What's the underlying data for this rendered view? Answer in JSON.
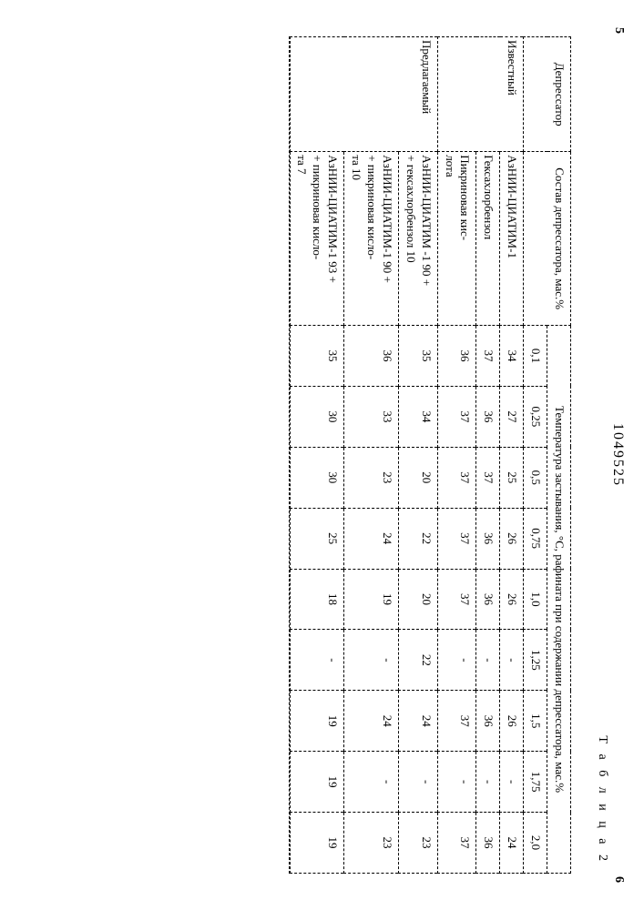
{
  "doc_number": "1049525",
  "margin_left": "5",
  "margin_right": "6",
  "table_caption": "Т а б л и ц а   2",
  "headers": {
    "col1": "Депрессатор",
    "col2": "Состав депрессатора,\nмас.%",
    "span_title": "Температура застывания, °С, рафината при содержании депрессатора, мас.%",
    "concs": [
      "0,1",
      "0,25",
      "0,5",
      "0,75",
      "1,0",
      "1,25",
      "1,5",
      "1,75",
      "2,0"
    ]
  },
  "groups": [
    {
      "name": "Известный",
      "rows": [
        {
          "comp": "АзНИИ-ЦИАТИМ-1",
          "vals": [
            "34",
            "27",
            "25",
            "26",
            "26",
            "-",
            "26",
            "-",
            "24"
          ]
        },
        {
          "comp": "Гексахлорбензол",
          "vals": [
            "37",
            "36",
            "37",
            "36",
            "36",
            "-",
            "36",
            "-",
            "36"
          ]
        },
        {
          "comp": "Пикриновая кис-\nлота",
          "vals": [
            "36",
            "37",
            "37",
            "37",
            "37",
            "-",
            "37",
            "-",
            "37"
          ]
        }
      ]
    },
    {
      "name": "Предлагаемый",
      "rows": [
        {
          "comp": "АзНИИ-ЦИАТИМ -1 90 +\n+ гексахлорбензол 10",
          "vals": [
            "35",
            "34",
            "20",
            "22",
            "20",
            "22",
            "24",
            "-",
            "23"
          ]
        },
        {
          "comp": "АзНИИ-ЦИАТИМ-1 90 +\n+ пикриновая кисло-\nта 10",
          "vals": [
            "36",
            "33",
            "23",
            "24",
            "19",
            "-",
            "24",
            "-",
            "23"
          ]
        },
        {
          "comp": "АзНИИ-ЦИАТИМ-1 93 +\n+ пикриновая кисло-\nта 7",
          "vals": [
            "35",
            "30",
            "30",
            "25",
            "18",
            "-",
            "19",
            "19",
            "19"
          ]
        }
      ]
    }
  ]
}
